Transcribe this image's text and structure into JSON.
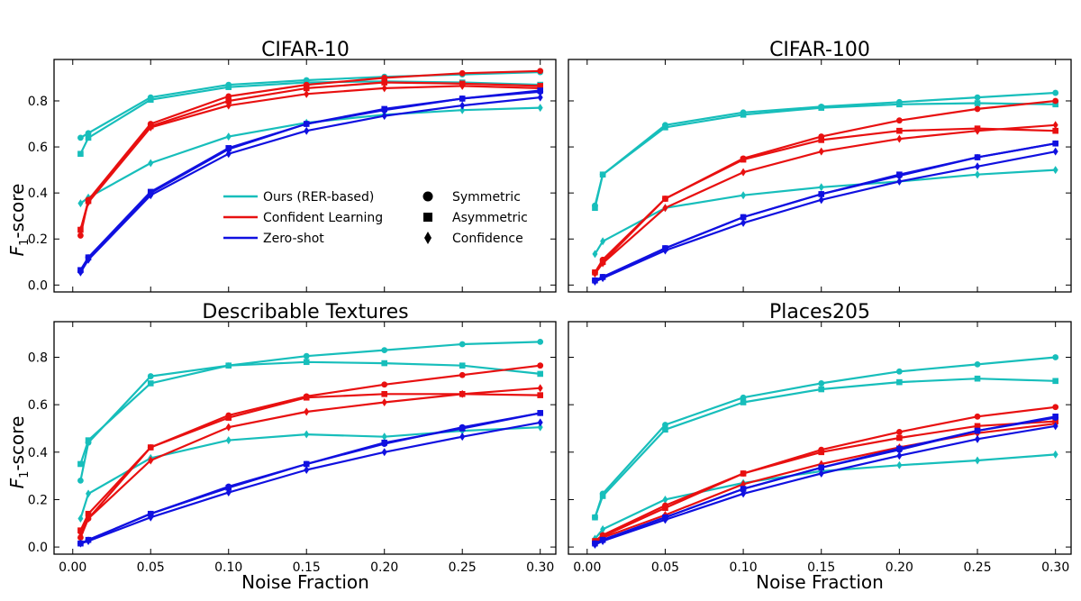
{
  "figure": {
    "ylabel_main": "F",
    "ylabel_sub": "1",
    "ylabel_rest": "-score",
    "xlabel": "Noise Fraction"
  },
  "legend": {
    "methods": [
      {
        "label": "Ours (RER-based)",
        "color": "#17bebb"
      },
      {
        "label": "Confident Learning",
        "color": "#e81010"
      },
      {
        "label": "Zero-shot",
        "color": "#1010e0"
      }
    ],
    "noise_types": [
      {
        "label": "Symmetric",
        "marker": "circle"
      },
      {
        "label": "Asymmetric",
        "marker": "square"
      },
      {
        "label": "Confidence",
        "marker": "diamond"
      }
    ]
  },
  "chart_data": [
    {
      "type": "line",
      "title": "CIFAR-10",
      "x": [
        0.005,
        0.01,
        0.05,
        0.1,
        0.15,
        0.2,
        0.25,
        0.3
      ],
      "xticks": [
        "0.00",
        "0.05",
        "0.10",
        "0.15",
        "0.20",
        "0.25",
        "0.30"
      ],
      "yticks": [
        "0.0",
        "0.2",
        "0.4",
        "0.6",
        "0.8"
      ],
      "xlim": [
        -0.012,
        0.31
      ],
      "ylim": [
        -0.03,
        0.98
      ],
      "series": [
        {
          "method": 0,
          "marker": "circle",
          "values": [
            0.64,
            0.66,
            0.815,
            0.87,
            0.89,
            0.905,
            0.915,
            0.925
          ]
        },
        {
          "method": 0,
          "marker": "square",
          "values": [
            0.57,
            0.64,
            0.805,
            0.86,
            0.88,
            0.885,
            0.88,
            0.87
          ]
        },
        {
          "method": 0,
          "marker": "diamond",
          "values": [
            0.355,
            0.38,
            0.53,
            0.645,
            0.705,
            0.74,
            0.76,
            0.77
          ]
        },
        {
          "method": 1,
          "marker": "circle",
          "values": [
            0.215,
            0.37,
            0.7,
            0.82,
            0.87,
            0.9,
            0.92,
            0.93
          ]
        },
        {
          "method": 1,
          "marker": "square",
          "values": [
            0.24,
            0.365,
            0.69,
            0.8,
            0.855,
            0.88,
            0.875,
            0.865
          ]
        },
        {
          "method": 1,
          "marker": "diamond",
          "values": [
            0.24,
            0.36,
            0.685,
            0.78,
            0.83,
            0.855,
            0.865,
            0.855
          ]
        },
        {
          "method": 2,
          "marker": "circle",
          "values": [
            0.06,
            0.12,
            0.4,
            0.59,
            0.7,
            0.76,
            0.81,
            0.84
          ]
        },
        {
          "method": 2,
          "marker": "square",
          "values": [
            0.065,
            0.12,
            0.405,
            0.595,
            0.7,
            0.765,
            0.81,
            0.845
          ]
        },
        {
          "method": 2,
          "marker": "diamond",
          "values": [
            0.055,
            0.11,
            0.39,
            0.57,
            0.67,
            0.735,
            0.78,
            0.815
          ]
        }
      ]
    },
    {
      "type": "line",
      "title": "CIFAR-100",
      "x": [
        0.005,
        0.01,
        0.05,
        0.1,
        0.15,
        0.2,
        0.25,
        0.3
      ],
      "xticks": [
        "0.00",
        "0.05",
        "0.10",
        "0.15",
        "0.20",
        "0.25",
        "0.30"
      ],
      "yticks": [
        "0.0",
        "0.2",
        "0.4",
        "0.6",
        "0.8"
      ],
      "xlim": [
        -0.012,
        0.31
      ],
      "ylim": [
        -0.03,
        0.98
      ],
      "series": [
        {
          "method": 0,
          "marker": "circle",
          "values": [
            0.345,
            0.48,
            0.695,
            0.75,
            0.775,
            0.795,
            0.815,
            0.835
          ]
        },
        {
          "method": 0,
          "marker": "square",
          "values": [
            0.335,
            0.48,
            0.685,
            0.74,
            0.77,
            0.785,
            0.79,
            0.785
          ]
        },
        {
          "method": 0,
          "marker": "diamond",
          "values": [
            0.135,
            0.19,
            0.335,
            0.39,
            0.425,
            0.45,
            0.48,
            0.5
          ]
        },
        {
          "method": 1,
          "marker": "circle",
          "values": [
            0.055,
            0.11,
            0.375,
            0.55,
            0.645,
            0.715,
            0.765,
            0.8
          ]
        },
        {
          "method": 1,
          "marker": "square",
          "values": [
            0.055,
            0.1,
            0.375,
            0.545,
            0.63,
            0.67,
            0.68,
            0.67
          ]
        },
        {
          "method": 1,
          "marker": "diamond",
          "values": [
            0.05,
            0.095,
            0.335,
            0.49,
            0.58,
            0.635,
            0.67,
            0.695
          ]
        },
        {
          "method": 2,
          "marker": "circle",
          "values": [
            0.02,
            0.035,
            0.16,
            0.295,
            0.395,
            0.475,
            0.555,
            0.615
          ]
        },
        {
          "method": 2,
          "marker": "square",
          "values": [
            0.02,
            0.035,
            0.16,
            0.295,
            0.395,
            0.48,
            0.555,
            0.615
          ]
        },
        {
          "method": 2,
          "marker": "diamond",
          "values": [
            0.015,
            0.03,
            0.15,
            0.27,
            0.37,
            0.45,
            0.515,
            0.58
          ]
        }
      ]
    },
    {
      "type": "line",
      "title": "Describable Textures",
      "x": [
        0.005,
        0.01,
        0.05,
        0.1,
        0.15,
        0.2,
        0.25,
        0.3
      ],
      "xticks": [
        "0.00",
        "0.05",
        "0.10",
        "0.15",
        "0.20",
        "0.25",
        "0.30"
      ],
      "yticks": [
        "0.0",
        "0.2",
        "0.4",
        "0.6",
        "0.8"
      ],
      "xlim": [
        -0.012,
        0.31
      ],
      "ylim": [
        -0.03,
        0.95
      ],
      "series": [
        {
          "method": 0,
          "marker": "circle",
          "values": [
            0.28,
            0.44,
            0.72,
            0.765,
            0.805,
            0.83,
            0.855,
            0.865
          ]
        },
        {
          "method": 0,
          "marker": "square",
          "values": [
            0.35,
            0.45,
            0.69,
            0.765,
            0.78,
            0.775,
            0.765,
            0.73
          ]
        },
        {
          "method": 0,
          "marker": "diamond",
          "values": [
            0.12,
            0.225,
            0.375,
            0.45,
            0.475,
            0.465,
            0.49,
            0.505
          ]
        },
        {
          "method": 1,
          "marker": "circle",
          "values": [
            0.04,
            0.12,
            0.42,
            0.555,
            0.635,
            0.685,
            0.725,
            0.765
          ]
        },
        {
          "method": 1,
          "marker": "square",
          "values": [
            0.07,
            0.14,
            0.42,
            0.545,
            0.63,
            0.645,
            0.645,
            0.64
          ]
        },
        {
          "method": 1,
          "marker": "diamond",
          "values": [
            0.06,
            0.12,
            0.365,
            0.505,
            0.57,
            0.61,
            0.645,
            0.67
          ]
        },
        {
          "method": 2,
          "marker": "circle",
          "values": [
            0.015,
            0.03,
            0.14,
            0.255,
            0.35,
            0.435,
            0.505,
            0.565
          ]
        },
        {
          "method": 2,
          "marker": "square",
          "values": [
            0.015,
            0.03,
            0.14,
            0.25,
            0.35,
            0.44,
            0.5,
            0.565
          ]
        },
        {
          "method": 2,
          "marker": "diamond",
          "values": [
            0.015,
            0.025,
            0.125,
            0.23,
            0.325,
            0.4,
            0.465,
            0.525
          ]
        }
      ]
    },
    {
      "type": "line",
      "title": "Places205",
      "x": [
        0.005,
        0.01,
        0.05,
        0.1,
        0.15,
        0.2,
        0.25,
        0.3
      ],
      "xticks": [
        "0.00",
        "0.05",
        "0.10",
        "0.15",
        "0.20",
        "0.25",
        "0.30"
      ],
      "yticks": [
        "0.0",
        "0.2",
        "0.4",
        "0.6",
        "0.8"
      ],
      "xlim": [
        -0.012,
        0.31
      ],
      "ylim": [
        -0.03,
        0.95
      ],
      "series": [
        {
          "method": 0,
          "marker": "circle",
          "values": [
            0.125,
            0.225,
            0.515,
            0.63,
            0.69,
            0.74,
            0.77,
            0.8
          ]
        },
        {
          "method": 0,
          "marker": "square",
          "values": [
            0.125,
            0.215,
            0.495,
            0.61,
            0.665,
            0.695,
            0.71,
            0.7
          ]
        },
        {
          "method": 0,
          "marker": "diamond",
          "values": [
            0.035,
            0.075,
            0.2,
            0.27,
            0.32,
            0.345,
            0.365,
            0.39
          ]
        },
        {
          "method": 1,
          "marker": "circle",
          "values": [
            0.025,
            0.05,
            0.175,
            0.31,
            0.41,
            0.485,
            0.55,
            0.59
          ]
        },
        {
          "method": 1,
          "marker": "square",
          "values": [
            0.025,
            0.045,
            0.165,
            0.31,
            0.4,
            0.46,
            0.51,
            0.53
          ]
        },
        {
          "method": 1,
          "marker": "diamond",
          "values": [
            0.02,
            0.04,
            0.135,
            0.265,
            0.35,
            0.42,
            0.48,
            0.52
          ]
        },
        {
          "method": 2,
          "marker": "circle",
          "values": [
            0.015,
            0.03,
            0.125,
            0.245,
            0.335,
            0.41,
            0.49,
            0.545
          ]
        },
        {
          "method": 2,
          "marker": "square",
          "values": [
            0.015,
            0.03,
            0.125,
            0.245,
            0.335,
            0.415,
            0.49,
            0.55
          ]
        },
        {
          "method": 2,
          "marker": "diamond",
          "values": [
            0.01,
            0.025,
            0.115,
            0.225,
            0.31,
            0.385,
            0.455,
            0.51
          ]
        }
      ]
    }
  ]
}
